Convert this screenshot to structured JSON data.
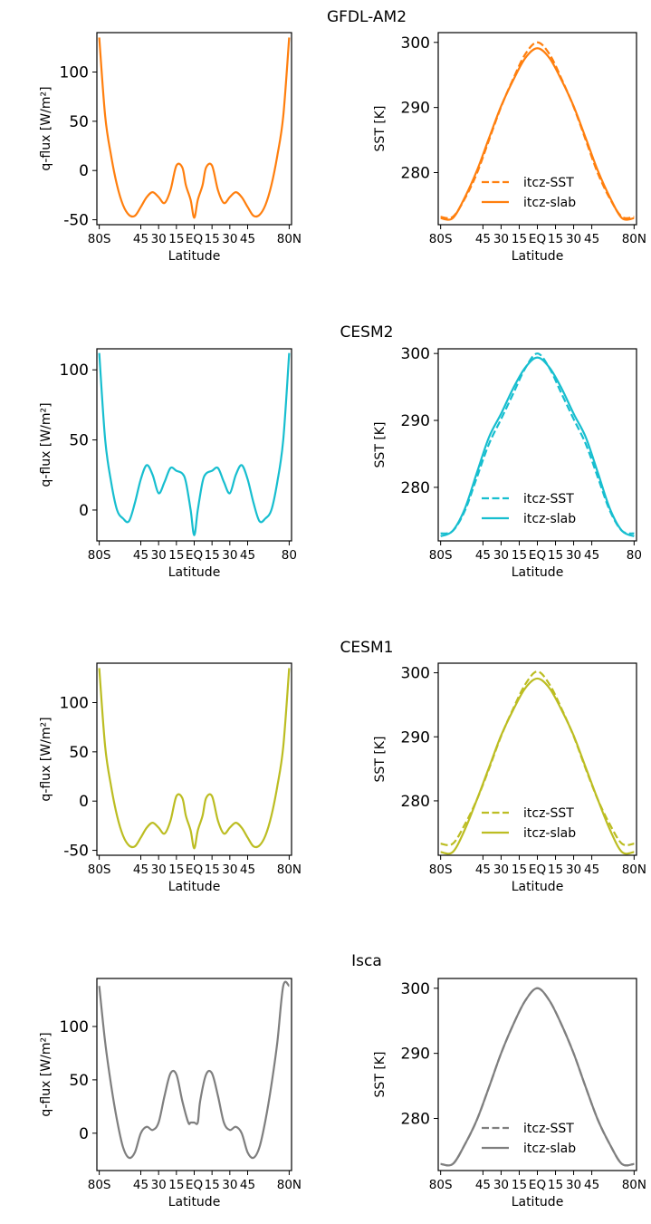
{
  "chart_data": [
    {
      "title": "GFDL-AM2",
      "color": "#ff7f0e",
      "x_tick_labels": [
        "80S",
        "45",
        "30",
        "15",
        "EQ",
        "15",
        "30",
        "45",
        "80N"
      ],
      "x_tick_values": [
        -80,
        -45,
        -30,
        -15,
        0,
        15,
        30,
        45,
        80
      ],
      "qflux": {
        "type": "line",
        "xlabel": "Latitude",
        "ylabel": "q-flux [W/m²]",
        "xlim": [
          -82,
          82
        ],
        "ylim": [
          -55,
          140
        ],
        "yticks": [
          -50,
          0,
          50,
          100
        ],
        "series": [
          {
            "style": "solid",
            "x": [
              -80,
              -75,
              -70,
              -65,
              -60,
              -55,
              -50,
              -45,
              -40,
              -35,
              -30,
              -25,
              -20,
              -15,
              -10,
              -7,
              -3,
              0,
              3,
              7,
              10,
              15,
              20,
              25,
              30,
              35,
              40,
              45,
              50,
              55,
              60,
              65,
              70,
              75,
              80
            ],
            "y": [
              135,
              55,
              15,
              -15,
              -35,
              -45,
              -46,
              -37,
              -27,
              -22,
              -27,
              -33,
              -20,
              5,
              3,
              -15,
              -30,
              -48,
              -30,
              -15,
              3,
              5,
              -20,
              -33,
              -27,
              -22,
              -27,
              -37,
              -46,
              -45,
              -35,
              -15,
              15,
              55,
              135
            ]
          }
        ]
      },
      "sst": {
        "type": "line",
        "xlabel": "Latitude",
        "ylabel": "SST [K]",
        "xlim": [
          -82,
          82
        ],
        "ylim": [
          272,
          301.5
        ],
        "yticks": [
          280,
          290,
          300
        ],
        "legend": "lower center",
        "series": [
          {
            "name": "itcz-SST",
            "style": "dashed",
            "x": [
              -80,
              -70,
              -60,
              -50,
              -40,
              -30,
              -20,
              -10,
              0,
              10,
              20,
              30,
              40,
              50,
              60,
              70,
              80
            ],
            "y": [
              273.2,
              273.2,
              276,
              279.9,
              285,
              290.1,
              294.4,
              298.2,
              300,
              298.2,
              294.4,
              290.1,
              285,
              279.9,
              276,
              273.2,
              273.2
            ]
          },
          {
            "name": "itcz-slab",
            "style": "solid",
            "x": [
              -80,
              -70,
              -60,
              -50,
              -40,
              -30,
              -20,
              -10,
              0,
              10,
              20,
              30,
              40,
              50,
              60,
              70,
              80
            ],
            "y": [
              273,
              273,
              276.2,
              280.3,
              285.3,
              290.2,
              294.2,
              297.6,
              299.1,
              297.6,
              294.2,
              290.2,
              285.3,
              280.3,
              276.2,
              273,
              273
            ]
          }
        ]
      }
    },
    {
      "title": "CESM2",
      "color": "#17becf",
      "x_tick_labels": [
        "80S",
        "45",
        "30",
        "15",
        "EQ",
        "15",
        "30",
        "45",
        "80"
      ],
      "x_tick_values": [
        -80,
        -45,
        -30,
        -15,
        0,
        15,
        30,
        45,
        80
      ],
      "qflux": {
        "type": "line",
        "xlabel": "Latitude",
        "ylabel": "q-flux [W/m²]",
        "xlim": [
          -82,
          82
        ],
        "ylim": [
          -22,
          115
        ],
        "yticks": [
          0,
          50,
          100
        ],
        "series": [
          {
            "style": "solid",
            "x": [
              -80,
              -75,
              -70,
              -65,
              -60,
              -55,
              -50,
              -45,
              -40,
              -35,
              -30,
              -25,
              -20,
              -15,
              -10,
              -7,
              -3,
              0,
              3,
              7,
              10,
              15,
              20,
              25,
              30,
              35,
              40,
              45,
              50,
              55,
              60,
              65,
              70,
              75,
              80
            ],
            "y": [
              112,
              50,
              20,
              0,
              -6,
              -8,
              5,
              22,
              32,
              25,
              12,
              20,
              30,
              28,
              26,
              20,
              0,
              -18,
              0,
              20,
              26,
              28,
              30,
              20,
              12,
              25,
              32,
              22,
              5,
              -8,
              -6,
              0,
              20,
              50,
              112
            ]
          }
        ]
      },
      "sst": {
        "type": "line",
        "xlabel": "Latitude",
        "ylabel": "SST [K]",
        "xlim": [
          -82,
          82
        ],
        "ylim": [
          272,
          300.7
        ],
        "yticks": [
          280,
          290,
          300
        ],
        "legend": "lower center",
        "series": [
          {
            "name": "itcz-SST",
            "style": "dashed",
            "x": [
              -80,
              -70,
              -60,
              -50,
              -40,
              -30,
              -20,
              -10,
              0,
              10,
              20,
              30,
              40,
              50,
              60,
              70,
              80
            ],
            "y": [
              273.1,
              273.5,
              276.5,
              281.5,
              286.5,
              290.2,
              294,
              297.8,
              300,
              297.8,
              294,
              290.2,
              286.5,
              281.5,
              276.5,
              273.5,
              273.1
            ]
          },
          {
            "name": "itcz-slab",
            "style": "solid",
            "x": [
              -80,
              -70,
              -60,
              -50,
              -40,
              -30,
              -20,
              -10,
              0,
              10,
              20,
              30,
              40,
              50,
              60,
              70,
              80
            ],
            "y": [
              272.7,
              273.5,
              276.8,
              282.2,
              287.5,
              291,
              294.8,
              297.9,
              299.4,
              297.9,
              294.8,
              291,
              287.5,
              282.2,
              276.8,
              273.5,
              272.7
            ]
          }
        ]
      }
    },
    {
      "title": "CESM1",
      "color": "#bcbd22",
      "x_tick_labels": [
        "80S",
        "45",
        "30",
        "15",
        "EQ",
        "15",
        "30",
        "45",
        "80N"
      ],
      "x_tick_values": [
        -80,
        -45,
        -30,
        -15,
        0,
        15,
        30,
        45,
        80
      ],
      "qflux": {
        "type": "line",
        "xlabel": "Latitude",
        "ylabel": "q-flux [W/m²]",
        "xlim": [
          -82,
          82
        ],
        "ylim": [
          -55,
          140
        ],
        "yticks": [
          -50,
          0,
          50,
          100
        ],
        "series": [
          {
            "style": "solid",
            "x": [
              -80,
              -75,
              -70,
              -65,
              -60,
              -55,
              -50,
              -45,
              -40,
              -35,
              -30,
              -25,
              -20,
              -15,
              -10,
              -7,
              -3,
              0,
              3,
              7,
              10,
              15,
              20,
              25,
              30,
              35,
              40,
              45,
              50,
              55,
              60,
              65,
              70,
              75,
              80
            ],
            "y": [
              135,
              55,
              15,
              -15,
              -35,
              -45,
              -46,
              -37,
              -27,
              -22,
              -27,
              -33,
              -20,
              5,
              3,
              -15,
              -30,
              -48,
              -30,
              -15,
              3,
              5,
              -20,
              -33,
              -27,
              -22,
              -27,
              -37,
              -46,
              -45,
              -35,
              -15,
              15,
              55,
              135
            ]
          }
        ]
      },
      "sst": {
        "type": "line",
        "xlabel": "Latitude",
        "ylabel": "SST [K]",
        "xlim": [
          -82,
          82
        ],
        "ylim": [
          271.5,
          301.5
        ],
        "yticks": [
          280,
          290,
          300
        ],
        "legend": "lower center",
        "series": [
          {
            "name": "itcz-SST",
            "style": "dashed",
            "x": [
              -80,
              -70,
              -60,
              -50,
              -40,
              -30,
              -20,
              -10,
              0,
              10,
              20,
              30,
              40,
              50,
              60,
              70,
              80
            ],
            "y": [
              273.3,
              273.3,
              276.3,
              280.2,
              285,
              290.1,
              294.4,
              298.2,
              300.2,
              298.2,
              294.4,
              290.1,
              285,
              280.2,
              276.3,
              273.3,
              273.3
            ]
          },
          {
            "name": "itcz-slab",
            "style": "solid",
            "x": [
              -80,
              -70,
              -60,
              -50,
              -40,
              -30,
              -20,
              -10,
              0,
              10,
              20,
              30,
              40,
              50,
              60,
              70,
              80
            ],
            "y": [
              272,
              272,
              275.5,
              280.2,
              285.2,
              290.2,
              294.2,
              297.6,
              299.1,
              297.6,
              294.2,
              290.2,
              285.2,
              280.2,
              275.5,
              272,
              272
            ]
          }
        ]
      }
    },
    {
      "title": "Isca",
      "color": "#7f7f7f",
      "x_tick_labels": [
        "80S",
        "45",
        "30",
        "15",
        "EQ",
        "15",
        "30",
        "45",
        "80N"
      ],
      "x_tick_values": [
        -80,
        -45,
        -30,
        -15,
        0,
        15,
        30,
        45,
        80
      ],
      "qflux": {
        "type": "line",
        "xlabel": "Latitude",
        "ylabel": "q-flux [W/m²]",
        "xlim": [
          -82,
          82
        ],
        "ylim": [
          -35,
          145
        ],
        "yticks": [
          0,
          50,
          100
        ],
        "series": [
          {
            "style": "solid",
            "x": [
              -80,
              -75,
              -70,
              -65,
              -60,
              -55,
              -50,
              -45,
              -40,
              -35,
              -30,
              -25,
              -20,
              -15,
              -10,
              -5,
              -3,
              0,
              3,
              5,
              10,
              15,
              20,
              25,
              30,
              35,
              40,
              45,
              50,
              55,
              60,
              65,
              70,
              75,
              80
            ],
            "y": [
              138,
              85,
              45,
              12,
              -13,
              -23,
              -18,
              0,
              6,
              3,
              10,
              35,
              56,
              55,
              30,
              10,
              10,
              10,
              10,
              30,
              55,
              56,
              35,
              10,
              3,
              6,
              0,
              -18,
              -23,
              -13,
              12,
              45,
              85,
              138,
              138
            ]
          }
        ]
      },
      "sst": {
        "type": "line",
        "xlabel": "Latitude",
        "ylabel": "SST [K]",
        "xlim": [
          -82,
          82
        ],
        "ylim": [
          272,
          301.5
        ],
        "yticks": [
          280,
          290,
          300
        ],
        "legend": "lower center",
        "series": [
          {
            "name": "itcz-SST",
            "style": "dashed",
            "x": [
              -80,
              -70,
              -60,
              -50,
              -40,
              -30,
              -20,
              -10,
              0,
              10,
              20,
              30,
              40,
              50,
              60,
              70,
              80
            ],
            "y": [
              273,
              273,
              276,
              279.8,
              284.8,
              290,
              294.4,
              298.1,
              300,
              298.1,
              294.4,
              290,
              284.8,
              279.8,
              276,
              273,
              273
            ]
          },
          {
            "name": "itcz-slab",
            "style": "solid",
            "x": [
              -80,
              -70,
              -60,
              -50,
              -40,
              -30,
              -20,
              -10,
              0,
              10,
              20,
              30,
              40,
              50,
              60,
              70,
              80
            ],
            "y": [
              273,
              273,
              276,
              279.8,
              284.8,
              290,
              294.4,
              298.1,
              300,
              298.1,
              294.4,
              290,
              284.8,
              279.8,
              276,
              273,
              273
            ]
          }
        ]
      }
    }
  ]
}
